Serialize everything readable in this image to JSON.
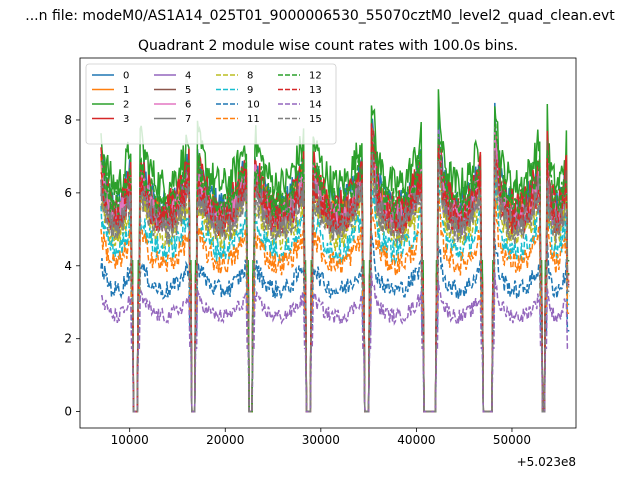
{
  "suptitle": "...n file: modeM0/AS1A14_025T01_9000006530_55070cztM0_level2_quad_clean.evt",
  "chart_data": {
    "type": "line",
    "title": "Quadrant 2 module wise count rates with 100.0s bins.",
    "xlabel": "",
    "ylabel": "",
    "x_offset_label": "+5.023e8",
    "xlim": [
      4800,
      56700
    ],
    "ylim": [
      -0.45,
      9.7
    ],
    "xticks": [
      10000,
      20000,
      30000,
      40000,
      50000
    ],
    "xtick_labels": [
      "10000",
      "20000",
      "30000",
      "40000",
      "50000"
    ],
    "yticks": [
      0,
      2,
      4,
      6,
      8
    ],
    "ytick_labels": [
      "0",
      "2",
      "4",
      "6",
      "8"
    ],
    "legend_position": "top-left",
    "legend_columns": 4,
    "segments": [
      [
        7000,
        10200
      ],
      [
        11000,
        16300
      ],
      [
        17000,
        22300
      ],
      [
        23000,
        28300
      ],
      [
        29100,
        34400
      ],
      [
        35200,
        40600
      ],
      [
        42200,
        46800
      ],
      [
        48100,
        53000
      ],
      [
        53600,
        55800
      ]
    ],
    "gaps": [
      [
        10200,
        11000
      ],
      [
        16300,
        17000
      ],
      [
        22300,
        23000
      ],
      [
        28300,
        29100
      ],
      [
        34400,
        35200
      ],
      [
        40600,
        42200
      ],
      [
        46800,
        48100
      ],
      [
        53000,
        53600
      ],
      [
        55800,
        56000
      ]
    ],
    "series": [
      {
        "name": "0",
        "color": "#1f77b4",
        "style": "solid",
        "level": 6.3
      },
      {
        "name": "1",
        "color": "#ff7f0e",
        "style": "solid",
        "level": 6.0
      },
      {
        "name": "2",
        "color": "#2ca02c",
        "style": "solid",
        "level": 6.9
      },
      {
        "name": "3",
        "color": "#d62728",
        "style": "solid",
        "level": 6.25
      },
      {
        "name": "4",
        "color": "#9467bd",
        "style": "solid",
        "level": 5.8
      },
      {
        "name": "5",
        "color": "#8c564b",
        "style": "solid",
        "level": 5.95
      },
      {
        "name": "6",
        "color": "#e377c2",
        "style": "solid",
        "level": 5.9
      },
      {
        "name": "7",
        "color": "#7f7f7f",
        "style": "solid",
        "level": 5.7
      },
      {
        "name": "8",
        "color": "#bcbd22",
        "style": "dashed",
        "level": 5.3
      },
      {
        "name": "9",
        "color": "#17becf",
        "style": "dashed",
        "level": 4.9
      },
      {
        "name": "10",
        "color": "#1f77b4",
        "style": "dashed",
        "level": 3.7
      },
      {
        "name": "11",
        "color": "#ff7f0e",
        "style": "dashed",
        "level": 4.5
      },
      {
        "name": "12",
        "color": "#2ca02c",
        "style": "dashed",
        "level": 6.3
      },
      {
        "name": "13",
        "color": "#d62728",
        "style": "dashed",
        "level": 5.8
      },
      {
        "name": "14",
        "color": "#9467bd",
        "style": "dashed",
        "level": 2.9
      },
      {
        "name": "15",
        "color": "#7f7f7f",
        "style": "dashed",
        "level": 5.5
      }
    ]
  }
}
